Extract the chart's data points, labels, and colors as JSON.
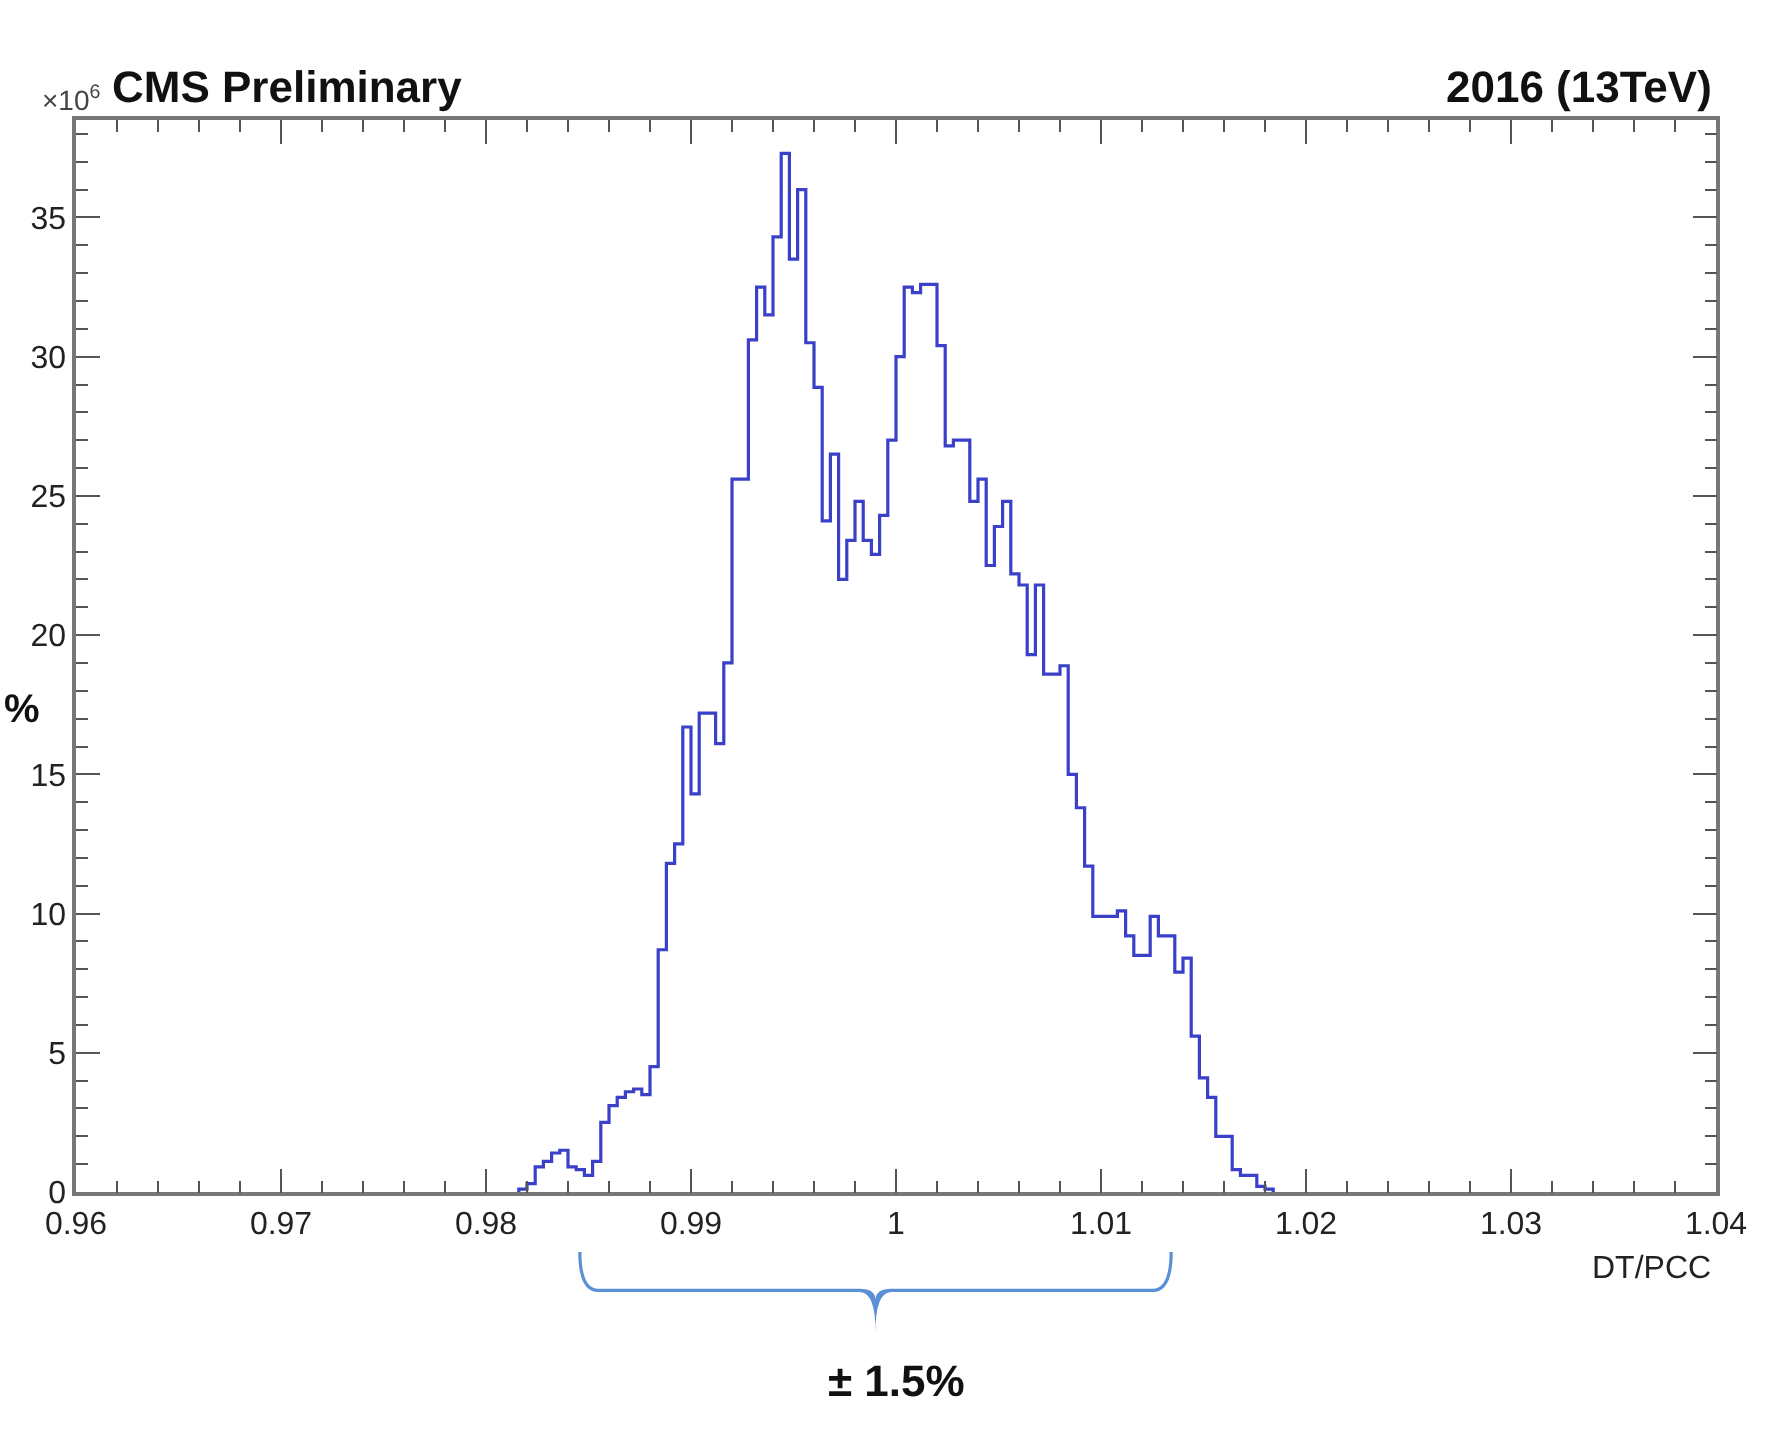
{
  "chart_data": {
    "type": "histogram",
    "title": "CMS Preliminary",
    "subtitle": "2016 (13TeV)",
    "xlabel": "DT/PCC",
    "annotations": [
      "×10$^{6}$",
      "%",
      "± 1.5%"
    ],
    "bins": [
      0.9816,
      0.982,
      0.9824,
      0.9828,
      0.9832,
      0.9836,
      0.984,
      0.9844,
      0.9848,
      0.9852,
      0.9856,
      0.986,
      0.9864,
      0.9868,
      0.9872,
      0.9876,
      0.988,
      0.9884,
      0.9888,
      0.9892,
      0.9896,
      0.99,
      0.9904,
      0.9908,
      0.9912,
      0.9916,
      0.992,
      0.9924,
      0.9928,
      0.9932,
      0.9936,
      0.994,
      0.9944,
      0.9948,
      0.9952,
      0.9956,
      0.996,
      0.9964,
      0.9968,
      0.9972,
      0.9976,
      0.998,
      0.9984,
      0.9988,
      0.9992,
      0.9996,
      1,
      1.0004,
      1.0008,
      1.0012,
      1.0016,
      1.002,
      1.0024,
      1.0028,
      1.0032,
      1.0036,
      1.004,
      1.0044,
      1.0048,
      1.0052,
      1.0056,
      1.006,
      1.0064,
      1.0068,
      1.0072,
      1.0076,
      1.008,
      1.0084,
      1.0088,
      1.0092,
      1.0096,
      1.01,
      1.0104,
      1.0108,
      1.0112,
      1.0116,
      1.012,
      1.0124,
      1.0128,
      1.0132,
      1.0136,
      1.014,
      1.0144,
      1.0148,
      1.0152,
      1.0156,
      1.016,
      1.0164,
      1.0168,
      1.0172,
      1.0176,
      1.018,
      1.0184
    ],
    "values": [
      0.1,
      0.3,
      0.9,
      1.1,
      1.4,
      1.5,
      0.9,
      0.8,
      0.6,
      1.1,
      2.5,
      3.1,
      3.4,
      3.6,
      3.7,
      3.5,
      4.5,
      8.7,
      11.8,
      12.5,
      16.7,
      14.3,
      17.2,
      17.2,
      16.1,
      19,
      25.6,
      25.6,
      30.6,
      32.5,
      31.5,
      34.3,
      37.3,
      33.5,
      36,
      30.5,
      28.9,
      24.1,
      26.5,
      22,
      23.4,
      24.8,
      23.4,
      22.9,
      24.3,
      27,
      30,
      32.5,
      32.3,
      32.6,
      32.6,
      30.4,
      26.8,
      27,
      27,
      24.8,
      25.6,
      22.5,
      23.9,
      24.8,
      22.2,
      21.8,
      19.3,
      21.8,
      18.6,
      18.6,
      18.9,
      15,
      13.8,
      11.7,
      9.9,
      9.9,
      9.9,
      10.1,
      9.2,
      8.5,
      8.5,
      9.9,
      9.2,
      9.2,
      7.9,
      8.4,
      5.6,
      4.1,
      3.4,
      2,
      2,
      0.8,
      0.6,
      0.6,
      0.2,
      0.1
    ],
    "color": "#3b40c8",
    "xlim": [
      0.96,
      1.04
    ],
    "xticks": [
      0.96,
      0.97,
      0.98,
      0.99,
      1,
      1.01,
      1.02,
      1.03,
      1.04
    ],
    "ylim": [
      0,
      38.5
    ],
    "yticks": [
      0,
      5,
      10,
      15,
      20,
      25,
      30,
      35
    ],
    "grid": false,
    "legend": false
  }
}
